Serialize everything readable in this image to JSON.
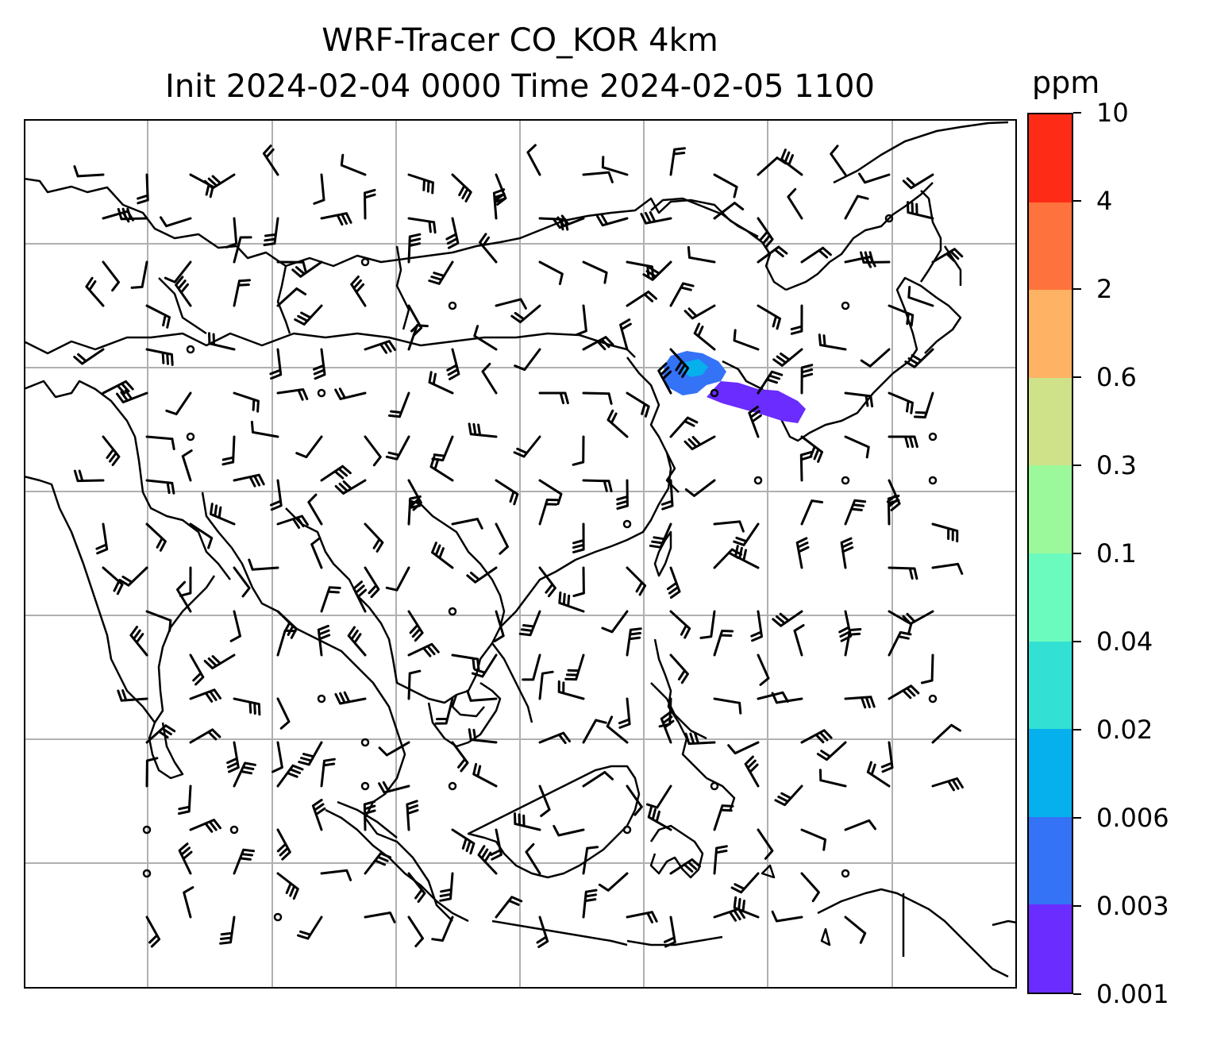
{
  "title_line1": "WRF-Tracer CO_KOR 4km",
  "title_line2": "Init 2024-02-04 0000 Time 2024-02-05 1100",
  "colorbar": {
    "unit": "ppm",
    "levels": [
      "0.001",
      "0.003",
      "0.006",
      "0.02",
      "0.04",
      "0.1",
      "0.3",
      "0.6",
      "2",
      "4",
      "10"
    ],
    "colors": [
      "#6a2cff",
      "#3472f6",
      "#05b0ed",
      "#32e0d4",
      "#6cfbbf",
      "#9cf99b",
      "#cfe28a",
      "#feb264",
      "#fe733d",
      "#fe2c16"
    ]
  },
  "map": {
    "gridline_color": "#b0b0b0",
    "coastline_color": "#000000",
    "plume_colors": [
      "#6a2cff",
      "#3472f6",
      "#05b0ed"
    ]
  }
}
